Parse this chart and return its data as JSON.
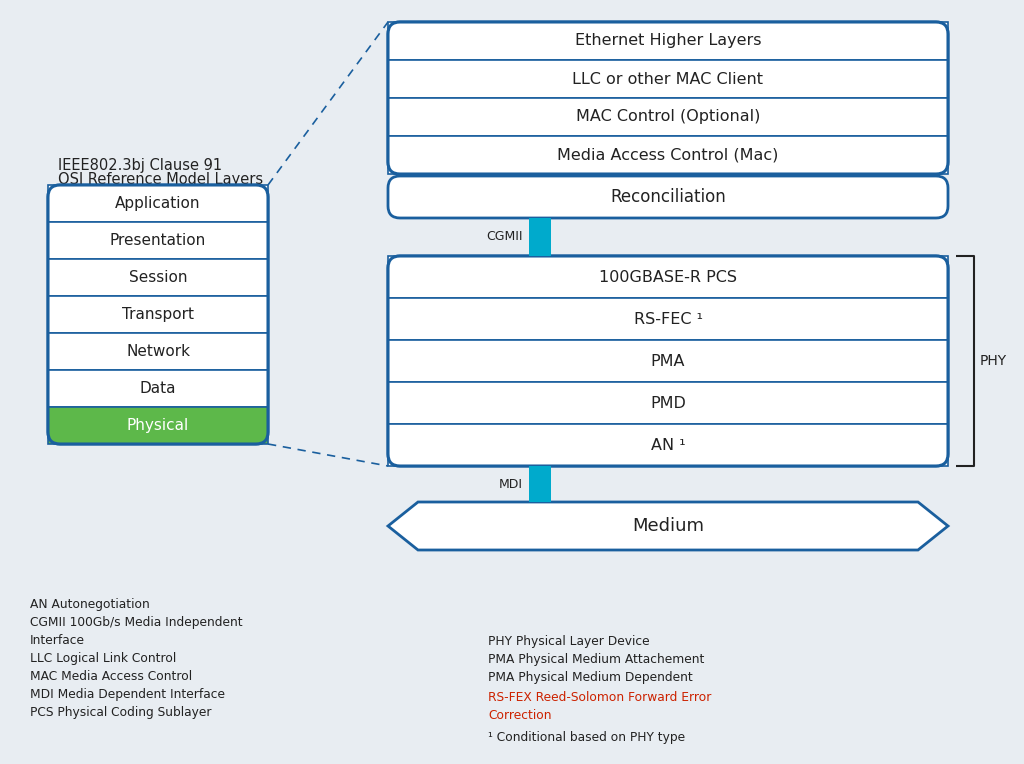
{
  "bg_color": "#e8edf2",
  "box_border_color": "#1a5f9e",
  "box_fill_color": "#ffffff",
  "teal_color": "#00aacc",
  "green_color": "#5db84a",
  "text_color": "#222222",
  "red_text_color": "#cc2200",
  "title_line1": "IEEE802.3bj Clause 91",
  "title_line2": "OSI Reference Model Layers",
  "osi_layers_top_to_bottom": [
    "Application",
    "Presentation",
    "Session",
    "Transport",
    "Network",
    "Data",
    "Physical"
  ],
  "upper_layers_top_to_bottom": [
    "Ethernet Higher Layers",
    "LLC or other MAC Client",
    "MAC Control (Optional)",
    "Media Access Control (Mac)"
  ],
  "reconciliation": "Reconciliation",
  "cgmii_label": "CGMII",
  "phy_layers_top_to_bottom": [
    "100GBASE-R PCS",
    "RS-FEC ¹",
    "PMA",
    "PMD",
    "AN ¹"
  ],
  "phy_label": "PHY",
  "mdi_label": "MDI",
  "medium_label": "Medium",
  "footnotes_left": [
    "AN Autonegotiation",
    "CGMII 100Gb/s Media Independent",
    "Interface",
    "LLC Logical Link Control",
    "MAC Media Access Control",
    "MDI Media Dependent Interface",
    "PCS Physical Coding Sublayer"
  ],
  "footnotes_right_normal": [
    "PHY Physical Layer Device",
    "PMA Physical Medium Attachement",
    "PMA Physical Medium Dependent"
  ],
  "footnotes_right_red_line1": "RS-FEX Reed-Solomon Forward Error",
  "footnotes_right_red_line2": "Correction",
  "footnote_cond": "¹ Conditional based on PHY type"
}
